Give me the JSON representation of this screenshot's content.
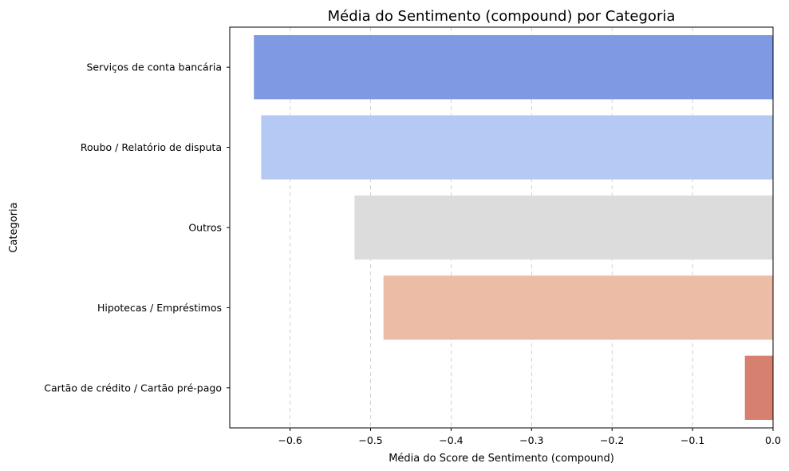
{
  "chart_data": {
    "type": "bar",
    "orientation": "horizontal",
    "title": "Média do Sentimento (compound) por Categoria",
    "xlabel": "Média do Score de Sentimento (compound)",
    "ylabel": "Categoria",
    "categories": [
      "Serviços de conta bancária",
      "Roubo / Relatório de disputa",
      "Outros",
      "Hipotecas / Empréstimos",
      "Cartão de crédito / Cartão pré-pago"
    ],
    "values": [
      -0.645,
      -0.636,
      -0.52,
      -0.484,
      -0.035
    ],
    "colors": [
      "#7f9ae3",
      "#b4c9f3",
      "#dcdcdc",
      "#ecbca6",
      "#d6806f"
    ],
    "xlim": [
      -0.675,
      0.0
    ],
    "xticks": [
      -0.6,
      -0.5,
      -0.4,
      -0.3,
      -0.2,
      -0.1,
      0.0
    ],
    "xtick_labels": [
      "−0.6",
      "−0.5",
      "−0.4",
      "−0.3",
      "−0.2",
      "−0.1",
      "0.0"
    ],
    "grid": "x-axis dashed"
  }
}
